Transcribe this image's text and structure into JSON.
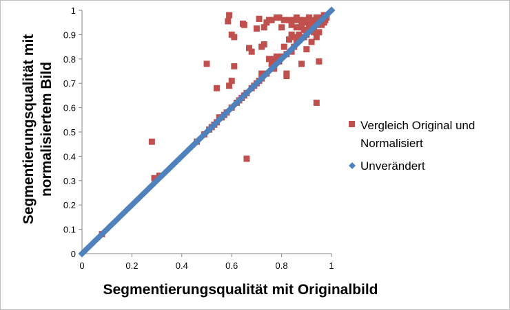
{
  "chart_data": {
    "type": "scatter",
    "title": "",
    "xlabel": "Segmentierungsqualität mit Originalbild",
    "ylabel_lines": [
      "Segmentierungsqualität mit",
      "normalisiertem Bild"
    ],
    "xlim": [
      0,
      1
    ],
    "ylim": [
      0,
      1
    ],
    "x_ticks": [
      0,
      0.2,
      0.4,
      0.6,
      0.8,
      1
    ],
    "x_tick_labels": [
      "0",
      "0.2",
      "0.4",
      "0.6",
      "0.8",
      "1"
    ],
    "y_ticks": [
      0,
      0.1,
      0.2,
      0.3,
      0.4,
      0.5,
      0.6,
      0.7,
      0.8,
      0.9,
      1
    ],
    "y_tick_labels": [
      "0",
      "0.1",
      "0.2",
      "0.3",
      "0.4",
      "0.5",
      "0.6",
      "0.7",
      "0.8",
      "0.9",
      "1"
    ],
    "grid": false,
    "legend_position": "right",
    "series": [
      {
        "name_lines": [
          "Vergleich Original und",
          "Normalisiert"
        ],
        "marker": "square",
        "color": "#c0504d",
        "points": [
          [
            0.08,
            0.08
          ],
          [
            0.28,
            0.46
          ],
          [
            0.29,
            0.31
          ],
          [
            0.31,
            0.32
          ],
          [
            0.46,
            0.46
          ],
          [
            0.49,
            0.49
          ],
          [
            0.5,
            0.78
          ],
          [
            0.51,
            0.51
          ],
          [
            0.52,
            0.52
          ],
          [
            0.53,
            0.53
          ],
          [
            0.54,
            0.54
          ],
          [
            0.54,
            0.68
          ],
          [
            0.55,
            0.56
          ],
          [
            0.56,
            0.56
          ],
          [
            0.57,
            0.57
          ],
          [
            0.58,
            0.58
          ],
          [
            0.585,
            0.955
          ],
          [
            0.59,
            0.98
          ],
          [
            0.59,
            0.69
          ],
          [
            0.6,
            0.6
          ],
          [
            0.6,
            0.71
          ],
          [
            0.6,
            0.9
          ],
          [
            0.61,
            0.89
          ],
          [
            0.61,
            0.77
          ],
          [
            0.62,
            0.62
          ],
          [
            0.63,
            0.63
          ],
          [
            0.64,
            0.64
          ],
          [
            0.645,
            0.945
          ],
          [
            0.65,
            0.94
          ],
          [
            0.65,
            0.65
          ],
          [
            0.66,
            0.39
          ],
          [
            0.66,
            0.66
          ],
          [
            0.67,
            0.845
          ],
          [
            0.68,
            0.83
          ],
          [
            0.68,
            0.68
          ],
          [
            0.69,
            0.69
          ],
          [
            0.7,
            0.925
          ],
          [
            0.7,
            0.7
          ],
          [
            0.71,
            0.965
          ],
          [
            0.71,
            0.71
          ],
          [
            0.72,
            0.74
          ],
          [
            0.72,
            0.85
          ],
          [
            0.72,
            0.72
          ],
          [
            0.73,
            0.86
          ],
          [
            0.73,
            0.93
          ],
          [
            0.74,
            0.95
          ],
          [
            0.74,
            0.74
          ],
          [
            0.75,
            0.8
          ],
          [
            0.75,
            0.96
          ],
          [
            0.76,
            0.78
          ],
          [
            0.76,
            0.96
          ],
          [
            0.77,
            0.76
          ],
          [
            0.77,
            0.8
          ],
          [
            0.78,
            0.81
          ],
          [
            0.78,
            0.97
          ],
          [
            0.79,
            0.97
          ],
          [
            0.79,
            0.79
          ],
          [
            0.8,
            0.93
          ],
          [
            0.8,
            0.81
          ],
          [
            0.81,
            0.85
          ],
          [
            0.81,
            0.96
          ],
          [
            0.82,
            0.82
          ],
          [
            0.82,
            0.74
          ],
          [
            0.82,
            0.73
          ],
          [
            0.83,
            0.88
          ],
          [
            0.83,
            0.96
          ],
          [
            0.84,
            0.9
          ],
          [
            0.84,
            0.94
          ],
          [
            0.84,
            0.83
          ],
          [
            0.85,
            0.96
          ],
          [
            0.85,
            0.85
          ],
          [
            0.85,
            0.89
          ],
          [
            0.86,
            0.93
          ],
          [
            0.86,
            0.87
          ],
          [
            0.86,
            0.97
          ],
          [
            0.87,
            0.96
          ],
          [
            0.87,
            0.9
          ],
          [
            0.87,
            0.88
          ],
          [
            0.88,
            0.95
          ],
          [
            0.88,
            0.93
          ],
          [
            0.88,
            0.78
          ],
          [
            0.89,
            0.89
          ],
          [
            0.89,
            0.96
          ],
          [
            0.89,
            0.92
          ],
          [
            0.9,
            0.9
          ],
          [
            0.9,
            0.95
          ],
          [
            0.9,
            0.84
          ],
          [
            0.91,
            0.97
          ],
          [
            0.91,
            0.93
          ],
          [
            0.91,
            0.92
          ],
          [
            0.92,
            0.94
          ],
          [
            0.92,
            0.87
          ],
          [
            0.92,
            0.96
          ],
          [
            0.93,
            0.95
          ],
          [
            0.93,
            0.93
          ],
          [
            0.93,
            0.91
          ],
          [
            0.94,
            0.97
          ],
          [
            0.94,
            0.94
          ],
          [
            0.94,
            0.62
          ],
          [
            0.94,
            0.89
          ],
          [
            0.95,
            0.96
          ],
          [
            0.95,
            0.95
          ],
          [
            0.95,
            0.79
          ],
          [
            0.95,
            0.91
          ],
          [
            0.96,
            0.97
          ],
          [
            0.96,
            0.96
          ],
          [
            0.96,
            0.94
          ],
          [
            0.97,
            0.98
          ],
          [
            0.97,
            0.97
          ],
          [
            0.97,
            0.95
          ],
          [
            0.975,
            0.96
          ],
          [
            0.98,
            0.98
          ],
          [
            0.98,
            0.97
          ]
        ]
      },
      {
        "name": "Unverändert",
        "marker": "diamond",
        "color": "#4f81bd",
        "x": [
          0,
          0.01,
          0.02,
          0.03,
          0.04,
          0.05,
          0.06,
          0.07,
          0.08,
          0.09,
          0.1,
          0.11,
          0.12,
          0.13,
          0.14,
          0.15,
          0.16,
          0.17,
          0.18,
          0.19,
          0.2,
          0.21,
          0.22,
          0.23,
          0.24,
          0.25,
          0.26,
          0.27,
          0.28,
          0.29,
          0.3,
          0.31,
          0.32,
          0.33,
          0.34,
          0.35,
          0.36,
          0.37,
          0.38,
          0.39,
          0.4,
          0.41,
          0.42,
          0.43,
          0.44,
          0.45,
          0.46,
          0.47,
          0.48,
          0.49,
          0.5,
          0.51,
          0.52,
          0.53,
          0.54,
          0.55,
          0.56,
          0.57,
          0.58,
          0.59,
          0.6,
          0.61,
          0.62,
          0.63,
          0.64,
          0.65,
          0.66,
          0.67,
          0.68,
          0.69,
          0.7,
          0.71,
          0.72,
          0.73,
          0.74,
          0.75,
          0.76,
          0.77,
          0.78,
          0.79,
          0.8,
          0.81,
          0.82,
          0.83,
          0.84,
          0.85,
          0.86,
          0.87,
          0.88,
          0.89,
          0.9,
          0.91,
          0.92,
          0.93,
          0.94,
          0.95,
          0.96,
          0.97,
          0.98,
          0.99,
          1
        ],
        "y": [
          0,
          0.01,
          0.02,
          0.03,
          0.04,
          0.05,
          0.06,
          0.07,
          0.08,
          0.09,
          0.1,
          0.11,
          0.12,
          0.13,
          0.14,
          0.15,
          0.16,
          0.17,
          0.18,
          0.19,
          0.2,
          0.21,
          0.22,
          0.23,
          0.24,
          0.25,
          0.26,
          0.27,
          0.28,
          0.29,
          0.3,
          0.31,
          0.32,
          0.33,
          0.34,
          0.35,
          0.36,
          0.37,
          0.38,
          0.39,
          0.4,
          0.41,
          0.42,
          0.43,
          0.44,
          0.45,
          0.46,
          0.47,
          0.48,
          0.49,
          0.5,
          0.51,
          0.52,
          0.53,
          0.54,
          0.55,
          0.56,
          0.57,
          0.58,
          0.59,
          0.6,
          0.61,
          0.62,
          0.63,
          0.64,
          0.65,
          0.66,
          0.67,
          0.68,
          0.69,
          0.7,
          0.71,
          0.72,
          0.73,
          0.74,
          0.75,
          0.76,
          0.77,
          0.78,
          0.79,
          0.8,
          0.81,
          0.82,
          0.83,
          0.84,
          0.85,
          0.86,
          0.87,
          0.88,
          0.89,
          0.9,
          0.91,
          0.92,
          0.93,
          0.94,
          0.95,
          0.96,
          0.97,
          0.98,
          0.99,
          1
        ]
      }
    ]
  }
}
